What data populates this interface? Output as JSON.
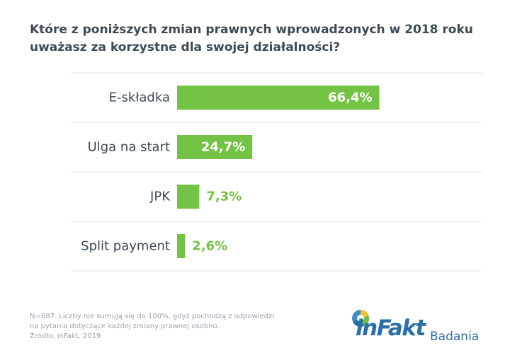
{
  "header": {
    "title_line1": "Które z poniższych zmian prawnych wprowadzonych w 2018 roku",
    "title_line2": "uważasz za korzystne dla swojej działalności?"
  },
  "chart_data": {
    "type": "bar",
    "orientation": "horizontal",
    "categories": [
      "E-składka",
      "Ulga na start",
      "JPK",
      "Split payment"
    ],
    "values": [
      66.4,
      24.7,
      7.3,
      2.6
    ],
    "value_labels": [
      "66,4%",
      "24,7%",
      "7,3%",
      "2,6%"
    ],
    "unit": "%",
    "xlim": [
      0,
      100
    ],
    "grid": "horizontal separators",
    "colors": {
      "bar": "#74c344",
      "label_inside": "#ffffff",
      "label_outside": "#74c344",
      "category": "#3d4a55",
      "separator": "#e3e6e9"
    }
  },
  "footnote": {
    "line1": "N=687. Liczby nie sumują się do 100%, gdyż pochodzą z odpowiedzi",
    "line2": "na pytania dotyczące każdej zmiany prawnej osobno.",
    "line3": "Źródło: inFakt, 2019"
  },
  "brand": {
    "name": "inFakt",
    "subtitle": "Badania",
    "colors": {
      "primary": "#2a70a6",
      "yellow": "#f2c12e",
      "green": "#6cbd45",
      "blue_light": "#3f8ecb"
    }
  }
}
